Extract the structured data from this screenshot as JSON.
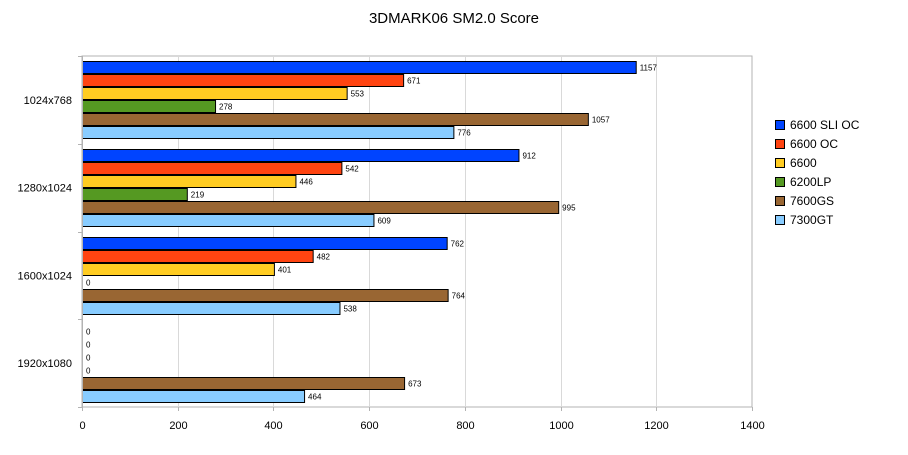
{
  "chart_data": {
    "type": "bar",
    "orientation": "horizontal",
    "title": "3DMARK06 SM2.0 Score",
    "xlabel": "",
    "ylabel": "",
    "xlim": [
      0,
      1400
    ],
    "xticks": [
      0,
      200,
      400,
      600,
      800,
      1000,
      1200,
      1400
    ],
    "grid": true,
    "legend_position": "right",
    "categories": [
      "1024x768",
      "1280x1024",
      "1600x1024",
      "1920x1080"
    ],
    "series": [
      {
        "name": "6600 SLI OC",
        "color": "#0044ff",
        "values": [
          1157,
          912,
          762,
          0
        ]
      },
      {
        "name": "6600 OC",
        "color": "#ff4411",
        "values": [
          671,
          542,
          482,
          0
        ]
      },
      {
        "name": "6600",
        "color": "#ffcc22",
        "values": [
          553,
          446,
          401,
          0
        ]
      },
      {
        "name": "6200LP",
        "color": "#559922",
        "values": [
          278,
          219,
          0,
          0
        ]
      },
      {
        "name": "7600GS",
        "color": "#996633",
        "values": [
          1057,
          995,
          764,
          673
        ]
      },
      {
        "name": "7300GT",
        "color": "#88ccff",
        "values": [
          776,
          609,
          538,
          464
        ]
      }
    ]
  }
}
